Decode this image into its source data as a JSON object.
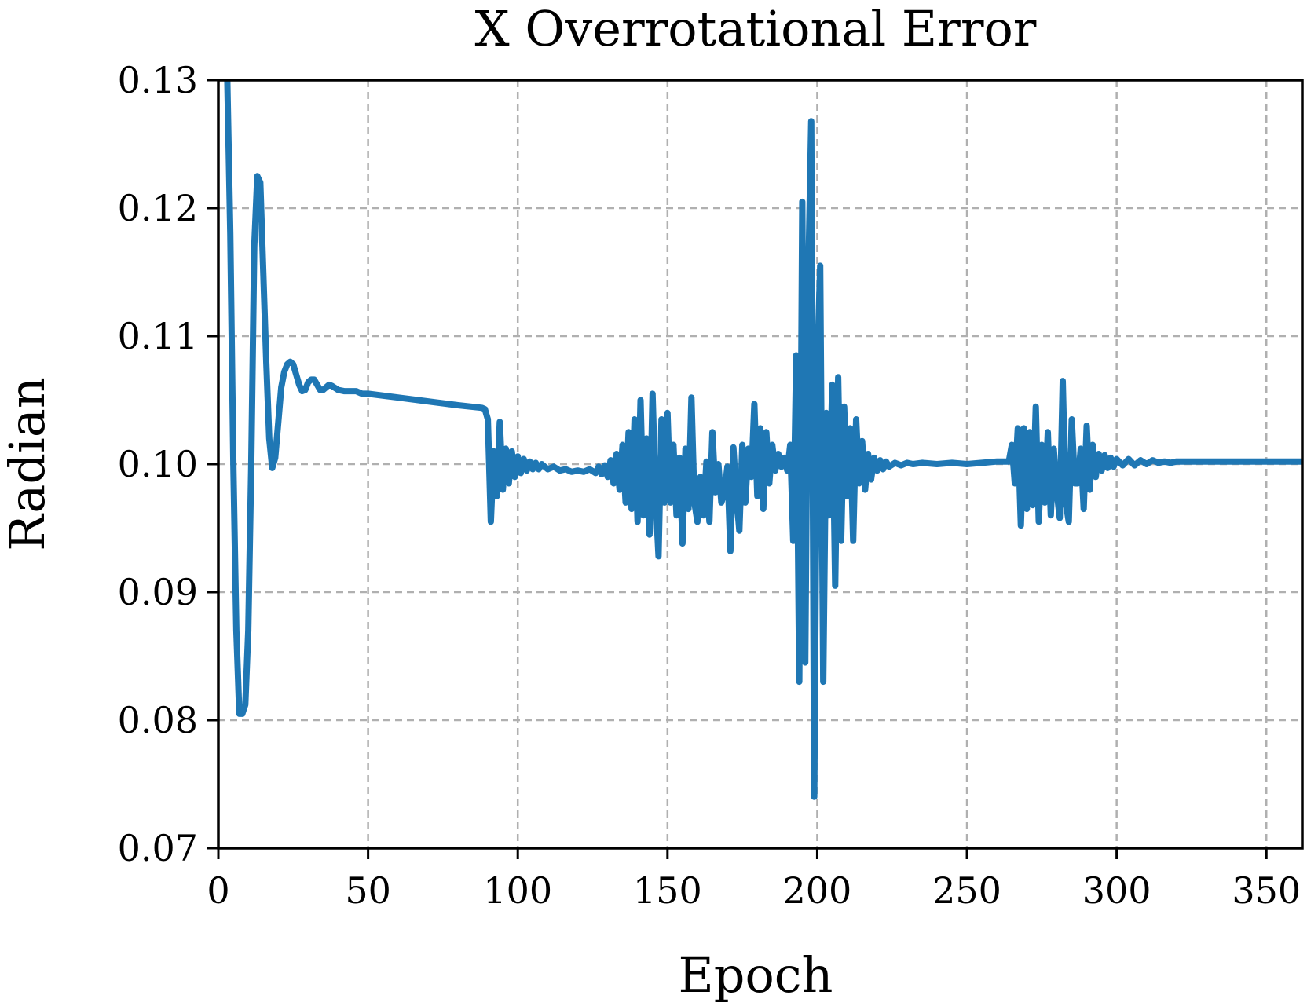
{
  "chart_data": {
    "type": "line",
    "title": "X Overrotational Error",
    "xlabel": "Epoch",
    "ylabel": "Radian",
    "xlim": [
      0,
      362
    ],
    "ylim": [
      0.07,
      0.13
    ],
    "xticks": [
      0,
      50,
      100,
      150,
      200,
      250,
      300,
      350
    ],
    "xtick_labels": [
      "0",
      "50",
      "100",
      "150",
      "200",
      "250",
      "300",
      "350"
    ],
    "yticks": [
      0.07,
      0.08,
      0.09,
      0.1,
      0.11,
      0.12,
      0.13
    ],
    "ytick_labels": [
      "0.07",
      "0.08",
      "0.09",
      "0.10",
      "0.11",
      "0.12",
      "0.13"
    ],
    "grid": true,
    "line_color": "#1f77b4",
    "series": [
      {
        "points": [
          [
            2,
            0.135
          ],
          [
            3,
            0.13
          ],
          [
            4,
            0.118
          ],
          [
            5,
            0.1
          ],
          [
            6,
            0.087
          ],
          [
            7,
            0.0805
          ],
          [
            8,
            0.0805
          ],
          [
            9,
            0.0812
          ],
          [
            10,
            0.087
          ],
          [
            11,
            0.1
          ],
          [
            12,
            0.117
          ],
          [
            13,
            0.1225
          ],
          [
            14,
            0.122
          ],
          [
            15,
            0.115
          ],
          [
            16,
            0.108
          ],
          [
            17,
            0.102
          ],
          [
            18,
            0.0997
          ],
          [
            19,
            0.1005
          ],
          [
            20,
            0.1032
          ],
          [
            21,
            0.106
          ],
          [
            22,
            0.1072
          ],
          [
            23,
            0.1078
          ],
          [
            24,
            0.108
          ],
          [
            25,
            0.1078
          ],
          [
            26,
            0.107
          ],
          [
            27,
            0.1062
          ],
          [
            28,
            0.1057
          ],
          [
            29,
            0.1058
          ],
          [
            30,
            0.1064
          ],
          [
            31,
            0.1066
          ],
          [
            32,
            0.1066
          ],
          [
            33,
            0.1062
          ],
          [
            34,
            0.1058
          ],
          [
            35,
            0.1058
          ],
          [
            36,
            0.106
          ],
          [
            37,
            0.1062
          ],
          [
            38,
            0.1061
          ],
          [
            40,
            0.1058
          ],
          [
            42,
            0.1057
          ],
          [
            44,
            0.1057
          ],
          [
            46,
            0.1057
          ],
          [
            48,
            0.1055
          ],
          [
            50,
            0.1055
          ],
          [
            60,
            0.1052
          ],
          [
            70,
            0.1049
          ],
          [
            80,
            0.1046
          ],
          [
            88,
            0.1044
          ],
          [
            89,
            0.1043
          ],
          [
            90,
            0.1035
          ],
          [
            91,
            0.0955
          ],
          [
            92,
            0.101
          ],
          [
            93,
            0.0975
          ],
          [
            94,
            0.1033
          ],
          [
            95,
            0.098
          ],
          [
            96,
            0.1012
          ],
          [
            97,
            0.0985
          ],
          [
            98,
            0.101
          ],
          [
            99,
            0.099
          ],
          [
            100,
            0.1006
          ],
          [
            101,
            0.0993
          ],
          [
            102,
            0.1004
          ],
          [
            103,
            0.0995
          ],
          [
            104,
            0.1002
          ],
          [
            105,
            0.0996
          ],
          [
            106,
            0.1001
          ],
          [
            107,
            0.0996
          ],
          [
            108,
            0.1
          ],
          [
            110,
            0.0996
          ],
          [
            112,
            0.0998
          ],
          [
            114,
            0.0995
          ],
          [
            116,
            0.0996
          ],
          [
            118,
            0.0994
          ],
          [
            120,
            0.0995
          ],
          [
            122,
            0.0994
          ],
          [
            124,
            0.0996
          ],
          [
            126,
            0.0993
          ],
          [
            127,
            0.0998
          ],
          [
            128,
            0.0992
          ],
          [
            129,
            0.0999
          ],
          [
            130,
            0.099
          ],
          [
            131,
            0.1003
          ],
          [
            132,
            0.0985
          ],
          [
            133,
            0.1008
          ],
          [
            134,
            0.098
          ],
          [
            135,
            0.1015
          ],
          [
            136,
            0.097
          ],
          [
            137,
            0.1025
          ],
          [
            138,
            0.0965
          ],
          [
            139,
            0.1035
          ],
          [
            140,
            0.0955
          ],
          [
            141,
            0.105
          ],
          [
            142,
            0.096
          ],
          [
            143,
            0.102
          ],
          [
            144,
            0.0945
          ],
          [
            145,
            0.1055
          ],
          [
            146,
            0.0975
          ],
          [
            147,
            0.0928
          ],
          [
            148,
            0.1035
          ],
          [
            149,
            0.097
          ],
          [
            150,
            0.104
          ],
          [
            151,
            0.097
          ],
          [
            152,
            0.1015
          ],
          [
            153,
            0.096
          ],
          [
            154,
            0.1005
          ],
          [
            155,
            0.0938
          ],
          [
            156,
            0.1012
          ],
          [
            157,
            0.0965
          ],
          [
            158,
            0.1052
          ],
          [
            159,
            0.097
          ],
          [
            160,
            0.0955
          ],
          [
            161,
            0.099
          ],
          [
            162,
            0.096
          ],
          [
            163,
            0.1002
          ],
          [
            164,
            0.0955
          ],
          [
            165,
            0.1025
          ],
          [
            166,
            0.0978
          ],
          [
            167,
            0.1
          ],
          [
            168,
            0.097
          ],
          [
            169,
            0.0978
          ],
          [
            170,
            0.0998
          ],
          [
            171,
            0.0932
          ],
          [
            172,
            0.1013
          ],
          [
            173,
            0.0975
          ],
          [
            174,
            0.0948
          ],
          [
            175,
            0.1015
          ],
          [
            176,
            0.097
          ],
          [
            177,
            0.1012
          ],
          [
            178,
            0.099
          ],
          [
            179,
            0.1047
          ],
          [
            180,
            0.0975
          ],
          [
            181,
            0.1028
          ],
          [
            182,
            0.0965
          ],
          [
            183,
            0.1025
          ],
          [
            184,
            0.0985
          ],
          [
            185,
            0.1015
          ],
          [
            186,
            0.0995
          ],
          [
            187,
            0.1008
          ],
          [
            188,
            0.0998
          ],
          [
            189,
            0.1005
          ],
          [
            190,
            0.0995
          ],
          [
            191,
            0.1015
          ],
          [
            192,
            0.094
          ],
          [
            193,
            0.1085
          ],
          [
            194,
            0.083
          ],
          [
            195,
            0.1205
          ],
          [
            196,
            0.0845
          ],
          [
            197,
            0.1145
          ],
          [
            198,
            0.1268
          ],
          [
            199,
            0.074
          ],
          [
            200,
            0.1075
          ],
          [
            201,
            0.1155
          ],
          [
            202,
            0.083
          ],
          [
            203,
            0.104
          ],
          [
            204,
            0.096
          ],
          [
            205,
            0.1062
          ],
          [
            206,
            0.0905
          ],
          [
            207,
            0.1068
          ],
          [
            208,
            0.094
          ],
          [
            209,
            0.1045
          ],
          [
            210,
            0.0975
          ],
          [
            211,
            0.1028
          ],
          [
            212,
            0.094
          ],
          [
            213,
            0.1035
          ],
          [
            214,
            0.0985
          ],
          [
            215,
            0.1018
          ],
          [
            216,
            0.098
          ],
          [
            217,
            0.1008
          ],
          [
            218,
            0.0988
          ],
          [
            219,
            0.1005
          ],
          [
            220,
            0.0995
          ],
          [
            221,
            0.1003
          ],
          [
            222,
            0.0996
          ],
          [
            223,
            0.1002
          ],
          [
            224,
            0.0998
          ],
          [
            226,
            0.1001
          ],
          [
            228,
            0.0999
          ],
          [
            230,
            0.1001
          ],
          [
            232,
            0.1
          ],
          [
            235,
            0.1001
          ],
          [
            240,
            0.1
          ],
          [
            245,
            0.1001
          ],
          [
            250,
            0.1
          ],
          [
            255,
            0.1001
          ],
          [
            260,
            0.1002
          ],
          [
            264,
            0.1002
          ],
          [
            265,
            0.1015
          ],
          [
            266,
            0.0985
          ],
          [
            267,
            0.1028
          ],
          [
            268,
            0.0952
          ],
          [
            269,
            0.1028
          ],
          [
            270,
            0.0965
          ],
          [
            271,
            0.1025
          ],
          [
            272,
            0.0968
          ],
          [
            273,
            0.1045
          ],
          [
            274,
            0.0955
          ],
          [
            275,
            0.1015
          ],
          [
            276,
            0.097
          ],
          [
            277,
            0.1025
          ],
          [
            278,
            0.096
          ],
          [
            279,
            0.1012
          ],
          [
            280,
            0.0978
          ],
          [
            281,
            0.0958
          ],
          [
            282,
            0.1065
          ],
          [
            283,
            0.097
          ],
          [
            284,
            0.0955
          ],
          [
            285,
            0.1035
          ],
          [
            286,
            0.0985
          ],
          [
            287,
            0.0985
          ],
          [
            288,
            0.1012
          ],
          [
            289,
            0.0965
          ],
          [
            290,
            0.103
          ],
          [
            291,
            0.098
          ],
          [
            292,
            0.1015
          ],
          [
            293,
            0.099
          ],
          [
            294,
            0.1008
          ],
          [
            295,
            0.0995
          ],
          [
            296,
            0.1007
          ],
          [
            297,
            0.0997
          ],
          [
            298,
            0.1005
          ],
          [
            299,
            0.0998
          ],
          [
            300,
            0.1004
          ],
          [
            302,
            0.0999
          ],
          [
            304,
            0.1004
          ],
          [
            306,
            0.0999
          ],
          [
            308,
            0.1003
          ],
          [
            310,
            0.1
          ],
          [
            312,
            0.1003
          ],
          [
            314,
            0.1001
          ],
          [
            316,
            0.1002
          ],
          [
            318,
            0.1001
          ],
          [
            320,
            0.1002
          ],
          [
            325,
            0.1002
          ],
          [
            330,
            0.1002
          ],
          [
            340,
            0.1002
          ],
          [
            350,
            0.1002
          ],
          [
            362,
            0.1002
          ]
        ]
      }
    ]
  }
}
